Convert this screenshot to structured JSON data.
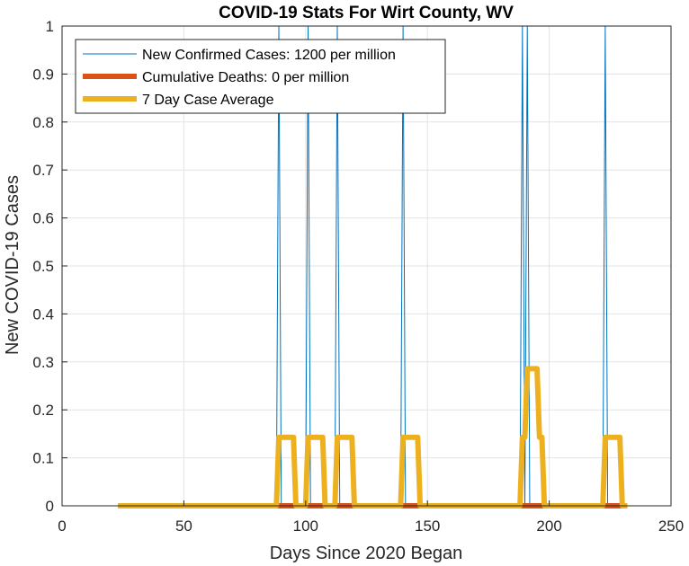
{
  "chart_data": {
    "type": "line",
    "title": "COVID-19 Stats For Wirt County, WV",
    "xlabel": "Days Since 2020 Began",
    "ylabel": "New COVID-19 Cases",
    "xlim": [
      0,
      250
    ],
    "ylim": [
      0,
      1
    ],
    "xticks": [
      0,
      50,
      100,
      150,
      200,
      250
    ],
    "yticks": [
      0,
      0.1,
      0.2,
      0.3,
      0.4,
      0.5,
      0.6,
      0.7,
      0.8,
      0.9,
      1
    ],
    "grid": true,
    "legend_location": "top-left",
    "x_range": [
      23,
      232
    ],
    "series": [
      {
        "name": "New Confirmed Cases: 1200 per million",
        "color": "#0072BD",
        "style": "thin",
        "spike_days": [
          89,
          101,
          113,
          140,
          189,
          191,
          223
        ],
        "spike_value": 1
      },
      {
        "name": "Cumulative Deaths: 0 per million",
        "color": "#D95319",
        "style": "thick",
        "constant_value": 0
      },
      {
        "name": "7 Day Case Average",
        "color": "#EDB120",
        "style": "thick",
        "window": 7,
        "note": "trailing 7-day mean of new cases"
      }
    ]
  }
}
